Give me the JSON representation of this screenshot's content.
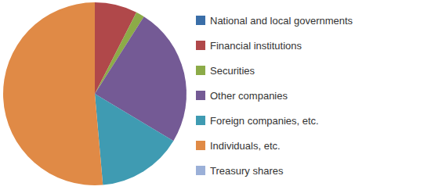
{
  "chart_data": {
    "type": "pie",
    "categories": [
      "National and local governments",
      "Financial institutions",
      "Securities",
      "Other companies",
      "Foreign companies, etc.",
      "Individuals, etc.",
      "Treasury shares"
    ],
    "values": [
      0,
      7.5,
      1.5,
      24.6,
      15,
      51.4,
      0
    ],
    "colors": [
      "#3a6ea8",
      "#b0484a",
      "#8cab48",
      "#745a95",
      "#3f9bb2",
      "#e08a46",
      "#9bb0d8"
    ],
    "legend": "right"
  }
}
